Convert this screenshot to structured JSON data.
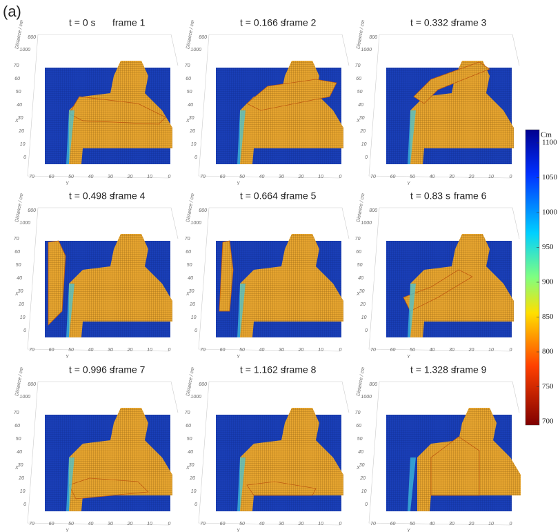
{
  "figure_label": "(a)",
  "axes": {
    "z_label": "Distance / cm",
    "z_ticks": [
      800,
      1000
    ],
    "x_label": "X",
    "x_ticks": [
      0,
      10,
      20,
      30,
      40,
      50,
      60,
      70
    ],
    "y_label": "Y",
    "y_ticks": [
      70,
      60,
      50,
      40,
      30,
      20,
      10,
      0
    ]
  },
  "panels": [
    {
      "time": "t = 0 s",
      "frame": "frame 1"
    },
    {
      "time": "t = 0.166 s",
      "frame": "frame 2"
    },
    {
      "time": "t = 0.332 s",
      "frame": "frame 3"
    },
    {
      "time": "t = 0.498 s",
      "frame": "frame 4"
    },
    {
      "time": "t = 0.664 s",
      "frame": "frame 5"
    },
    {
      "time": "t = 0.83 s",
      "frame": "frame 6"
    },
    {
      "time": "t = 0.996 s",
      "frame": "frame 7"
    },
    {
      "time": "t = 1.162 s",
      "frame": "frame 8"
    },
    {
      "time": "t = 1.328 s",
      "frame": "frame 9"
    }
  ],
  "colorbar": {
    "label": "Cm",
    "lim": [
      700,
      1100
    ],
    "ticks": [
      700,
      750,
      800,
      850,
      900,
      950,
      1000,
      1050,
      1100
    ]
  }
}
